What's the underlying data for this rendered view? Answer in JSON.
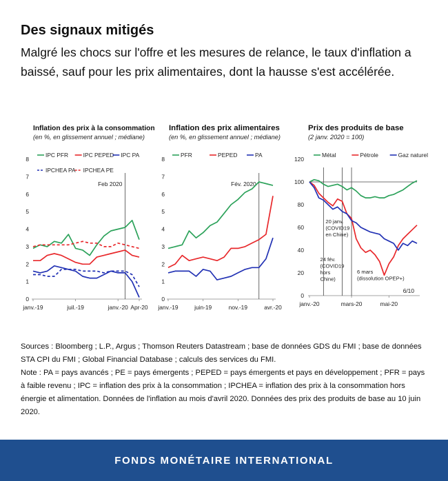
{
  "header": {
    "title": "Des signaux mitigés",
    "subtitle": "Malgré les chocs sur l'offre et les mesures de relance, le taux d'inflation a baissé, sauf pour les prix alimentaires, dont la hausse s'est accélérée."
  },
  "notes": {
    "sources": "Sources : Bloomberg ; L.P., Argus ; Thomson Reuters Datastream ; base de données GDS du FMI ; base de données STA CPI du FMI ; Global Financial Database ; calculs des services du FMI.",
    "note": "Note : PA = pays avancés ; PE = pays émergents ; PEPED = pays émergents et pays en développement ; PFR = pays à faible revenu ; IPC = inflation des prix à la consommation ; IPCHEA = inflation des prix à la consommation hors énergie et alimentation. Données de l'inflation au mois d'avril 2020. Données des prix des produits de base au 10 juin 2020."
  },
  "footer": {
    "org": "FONDS MONÉTAIRE INTERNATIONAL"
  },
  "colors": {
    "green": "#2ca25a",
    "red": "#e8282b",
    "blue": "#2232b4",
    "footer_bg": "#1f4f8f"
  },
  "chart_data": [
    {
      "type": "line",
      "title": "Inflation des prix à la consommation",
      "subtitle": "(en %, en glissement annuel ; médiane)",
      "x": [
        "2019-01",
        "2019-02",
        "2019-03",
        "2019-04",
        "2019-05",
        "2019-06",
        "2019-07",
        "2019-08",
        "2019-09",
        "2019-10",
        "2019-11",
        "2019-12",
        "2020-01",
        "2020-02",
        "2020-03",
        "2020-04"
      ],
      "xticks": [
        "janv.-19",
        "juil.-19",
        "janv.-20",
        "Apr-20"
      ],
      "xtick_index": [
        0,
        6,
        12,
        15
      ],
      "ylim": [
        0,
        8
      ],
      "yticks": [
        0,
        1,
        2,
        3,
        4,
        5,
        6,
        7,
        8
      ],
      "legend": "top",
      "vline": {
        "index": 13,
        "label": "Feb 2020"
      },
      "series": [
        {
          "name": "IPC PFR",
          "color": "#2ca25a",
          "dash": "solid",
          "values": [
            2.9,
            3.1,
            3.0,
            3.3,
            3.2,
            3.7,
            2.9,
            2.8,
            2.5,
            3.1,
            3.6,
            3.9,
            4.0,
            4.1,
            4.5,
            3.4
          ]
        },
        {
          "name": "IPC PEPED",
          "color": "#e8282b",
          "dash": "solid",
          "values": [
            2.2,
            2.2,
            2.5,
            2.6,
            2.5,
            2.3,
            2.1,
            2.0,
            2.0,
            2.4,
            2.5,
            2.6,
            2.7,
            2.8,
            2.5,
            2.4
          ]
        },
        {
          "name": "IPC PA",
          "color": "#2232b4",
          "dash": "solid",
          "values": [
            1.6,
            1.5,
            1.6,
            1.9,
            1.8,
            1.7,
            1.6,
            1.3,
            1.2,
            1.2,
            1.4,
            1.6,
            1.5,
            1.5,
            1.0,
            0.1
          ]
        },
        {
          "name": "IPCHEA PA",
          "color": "#2232b4",
          "dash": "dash",
          "values": [
            1.4,
            1.4,
            1.3,
            1.3,
            1.7,
            1.7,
            1.7,
            1.6,
            1.6,
            1.6,
            1.5,
            1.6,
            1.6,
            1.6,
            1.4,
            0.7
          ]
        },
        {
          "name": "IPCHEA PE",
          "color": "#e8282b",
          "dash": "dash",
          "values": [
            3.0,
            3.1,
            3.1,
            3.1,
            3.1,
            3.1,
            3.2,
            3.3,
            3.2,
            3.2,
            3.0,
            3.0,
            3.2,
            3.1,
            3.0,
            2.9
          ]
        }
      ]
    },
    {
      "type": "line",
      "title": "Inflation des prix alimentaires",
      "subtitle": "(en %, en glissement annuel ; médiane)",
      "x": [
        "2019-01",
        "2019-02",
        "2019-03",
        "2019-04",
        "2019-05",
        "2019-06",
        "2019-07",
        "2019-08",
        "2019-09",
        "2019-10",
        "2019-11",
        "2019-12",
        "2020-01",
        "2020-02",
        "2020-03",
        "2020-04"
      ],
      "xticks": [
        "janv.-19",
        "juin-19",
        "nov.-19",
        "avr.-20"
      ],
      "xtick_index": [
        0,
        5,
        10,
        15
      ],
      "ylim": [
        0,
        8
      ],
      "yticks": [
        0,
        1,
        2,
        3,
        4,
        5,
        6,
        7,
        8
      ],
      "legend": "top",
      "vline": {
        "index": 13,
        "label": "Fév. 2020"
      },
      "series": [
        {
          "name": "PFR",
          "color": "#2ca25a",
          "dash": "solid",
          "values": [
            2.9,
            3.0,
            3.1,
            3.9,
            3.5,
            3.8,
            4.2,
            4.4,
            4.9,
            5.4,
            5.7,
            6.1,
            6.3,
            6.7,
            6.6,
            6.5
          ]
        },
        {
          "name": "PEPED",
          "color": "#e8282b",
          "dash": "solid",
          "values": [
            1.8,
            2.0,
            2.5,
            2.2,
            2.3,
            2.4,
            2.3,
            2.2,
            2.4,
            2.9,
            2.9,
            3.0,
            3.2,
            3.4,
            3.7,
            5.9
          ]
        },
        {
          "name": "PA",
          "color": "#2232b4",
          "dash": "solid",
          "values": [
            1.5,
            1.6,
            1.6,
            1.6,
            1.3,
            1.7,
            1.6,
            1.1,
            1.2,
            1.3,
            1.5,
            1.7,
            1.8,
            1.8,
            2.3,
            3.5
          ]
        }
      ]
    },
    {
      "type": "line",
      "title": "Prix des produits de base",
      "subtitle": "(2 janv. 2020 = 100)",
      "x": [
        "2020-01-02",
        "2020-01-09",
        "2020-01-16",
        "2020-01-23",
        "2020-01-30",
        "2020-02-06",
        "2020-02-13",
        "2020-02-20",
        "2020-02-27",
        "2020-03-05",
        "2020-03-12",
        "2020-03-19",
        "2020-03-26",
        "2020-04-02",
        "2020-04-09",
        "2020-04-16",
        "2020-04-23",
        "2020-04-30",
        "2020-05-07",
        "2020-05-14",
        "2020-05-21",
        "2020-05-28",
        "2020-06-04",
        "2020-06-10"
      ],
      "xticks": [
        "janv.-20",
        "mars-20",
        "mai-20"
      ],
      "xtick_index": [
        0,
        9,
        17
      ],
      "ylim": [
        0,
        120
      ],
      "yticks": [
        0,
        20,
        40,
        60,
        80,
        100,
        120
      ],
      "legend": "top",
      "vlines": [
        {
          "index": 3,
          "label": [
            "20 janv.",
            "(COVID19",
            "en Chine)"
          ]
        },
        {
          "index": 7,
          "label": [
            "24 fév.",
            "(COVID19",
            "hors",
            "Chine)"
          ]
        },
        {
          "index": 9,
          "label": [
            "6 mars",
            "(dissolution OPEP+)"
          ]
        }
      ],
      "end_label": "6/10",
      "series": [
        {
          "name": "Métal",
          "color": "#2ca25a",
          "dash": "solid",
          "values": [
            100,
            102,
            101,
            98,
            96,
            97,
            98,
            96,
            93,
            95,
            92,
            88,
            86,
            86,
            87,
            86,
            86,
            88,
            89,
            91,
            93,
            96,
            99,
            101
          ]
        },
        {
          "name": "Pétrole",
          "color": "#e8282b",
          "dash": "solid",
          "values": [
            100,
            97,
            90,
            86,
            82,
            79,
            85,
            83,
            72,
            68,
            50,
            42,
            38,
            40,
            36,
            30,
            18,
            28,
            34,
            44,
            50,
            54,
            58,
            62
          ]
        },
        {
          "name": "Gaz naturel",
          "color": "#2232b4",
          "dash": "solid",
          "values": [
            100,
            95,
            86,
            84,
            80,
            76,
            78,
            74,
            72,
            66,
            64,
            60,
            58,
            56,
            55,
            54,
            50,
            48,
            46,
            40,
            46,
            44,
            48,
            46
          ]
        }
      ],
      "hline": 100
    }
  ]
}
